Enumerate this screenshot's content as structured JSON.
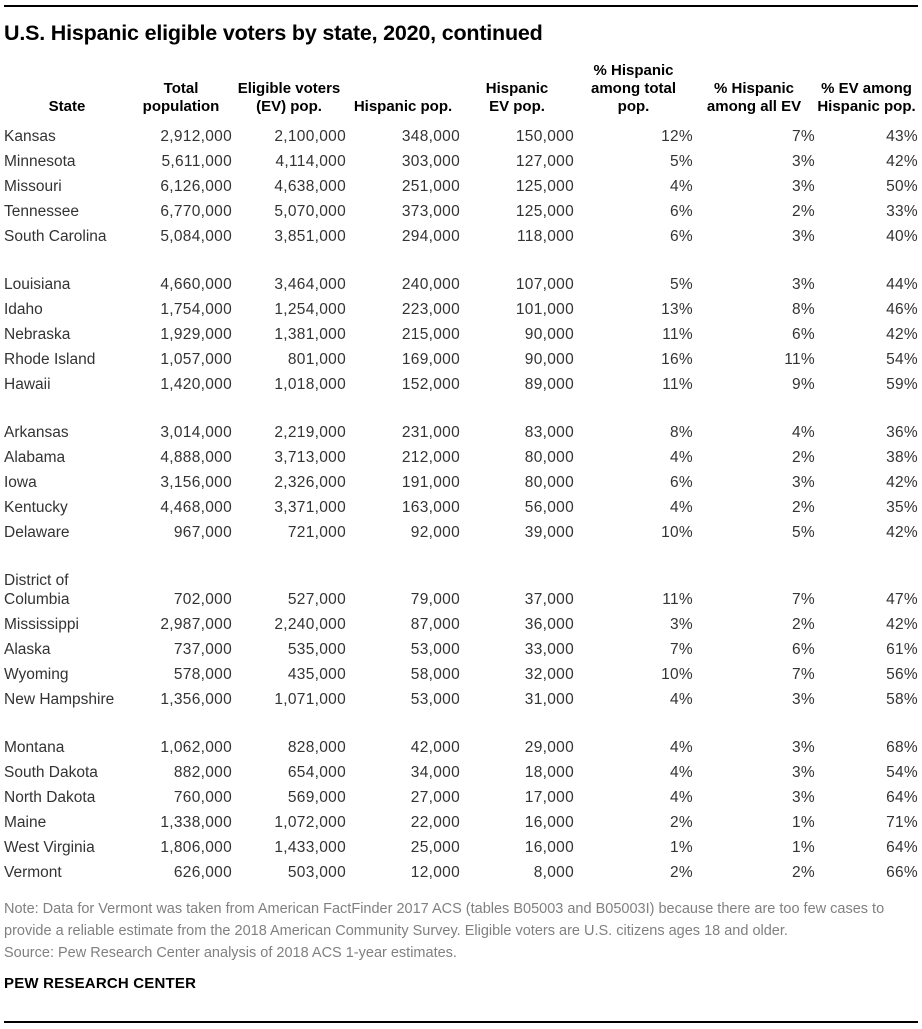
{
  "title": "U.S. Hispanic eligible voters by state, 2020, continued",
  "chart_data": {
    "type": "table",
    "title": "U.S. Hispanic eligible voters by state, 2020, continued",
    "columns": [
      "State",
      "Total population",
      "Eligible voters (EV) pop.",
      "Hispanic pop.",
      "Hispanic EV pop.",
      "% Hispanic among total pop.",
      "% Hispanic among all EV",
      "% EV among Hispanic pop."
    ],
    "header_lines": [
      "State",
      "Total\npopulation",
      "Eligible voters\n(EV) pop.",
      "Hispanic pop.",
      "Hispanic\nEV pop.",
      "% Hispanic\namong total\npop.",
      "% Hispanic\namong all EV",
      "% EV among\nHispanic pop."
    ],
    "groups": [
      [
        [
          "Kansas",
          "2,912,000",
          "2,100,000",
          "348,000",
          "150,000",
          "12%",
          "7%",
          "43%"
        ],
        [
          "Minnesota",
          "5,611,000",
          "4,114,000",
          "303,000",
          "127,000",
          "5%",
          "3%",
          "42%"
        ],
        [
          "Missouri",
          "6,126,000",
          "4,638,000",
          "251,000",
          "125,000",
          "4%",
          "3%",
          "50%"
        ],
        [
          "Tennessee",
          "6,770,000",
          "5,070,000",
          "373,000",
          "125,000",
          "6%",
          "2%",
          "33%"
        ],
        [
          "South Carolina",
          "5,084,000",
          "3,851,000",
          "294,000",
          "118,000",
          "6%",
          "3%",
          "40%"
        ]
      ],
      [
        [
          "Louisiana",
          "4,660,000",
          "3,464,000",
          "240,000",
          "107,000",
          "5%",
          "3%",
          "44%"
        ],
        [
          "Idaho",
          "1,754,000",
          "1,254,000",
          "223,000",
          "101,000",
          "13%",
          "8%",
          "46%"
        ],
        [
          "Nebraska",
          "1,929,000",
          "1,381,000",
          "215,000",
          "90,000",
          "11%",
          "6%",
          "42%"
        ],
        [
          "Rhode Island",
          "1,057,000",
          "801,000",
          "169,000",
          "90,000",
          "16%",
          "11%",
          "54%"
        ],
        [
          "Hawaii",
          "1,420,000",
          "1,018,000",
          "152,000",
          "89,000",
          "11%",
          "9%",
          "59%"
        ]
      ],
      [
        [
          "Arkansas",
          "3,014,000",
          "2,219,000",
          "231,000",
          "83,000",
          "8%",
          "4%",
          "36%"
        ],
        [
          "Alabama",
          "4,888,000",
          "3,713,000",
          "212,000",
          "80,000",
          "4%",
          "2%",
          "38%"
        ],
        [
          "Iowa",
          "3,156,000",
          "2,326,000",
          "191,000",
          "80,000",
          "6%",
          "3%",
          "42%"
        ],
        [
          "Kentucky",
          "4,468,000",
          "3,371,000",
          "163,000",
          "56,000",
          "4%",
          "2%",
          "35%"
        ],
        [
          "Delaware",
          "967,000",
          "721,000",
          "92,000",
          "39,000",
          "10%",
          "5%",
          "42%"
        ]
      ],
      [
        [
          "District of Columbia",
          "702,000",
          "527,000",
          "79,000",
          "37,000",
          "11%",
          "7%",
          "47%"
        ],
        [
          "Mississippi",
          "2,987,000",
          "2,240,000",
          "87,000",
          "36,000",
          "3%",
          "2%",
          "42%"
        ],
        [
          "Alaska",
          "737,000",
          "535,000",
          "53,000",
          "33,000",
          "7%",
          "6%",
          "61%"
        ],
        [
          "Wyoming",
          "578,000",
          "435,000",
          "58,000",
          "32,000",
          "10%",
          "7%",
          "56%"
        ],
        [
          "New Hampshire",
          "1,356,000",
          "1,071,000",
          "53,000",
          "31,000",
          "4%",
          "3%",
          "58%"
        ]
      ],
      [
        [
          "Montana",
          "1,062,000",
          "828,000",
          "42,000",
          "29,000",
          "4%",
          "3%",
          "68%"
        ],
        [
          "South Dakota",
          "882,000",
          "654,000",
          "34,000",
          "18,000",
          "4%",
          "3%",
          "54%"
        ],
        [
          "North Dakota",
          "760,000",
          "569,000",
          "27,000",
          "17,000",
          "4%",
          "3%",
          "64%"
        ],
        [
          "Maine",
          "1,338,000",
          "1,072,000",
          "22,000",
          "16,000",
          "2%",
          "1%",
          "71%"
        ],
        [
          "West Virginia",
          "1,806,000",
          "1,433,000",
          "25,000",
          "16,000",
          "1%",
          "1%",
          "64%"
        ],
        [
          "Vermont",
          "626,000",
          "503,000",
          "12,000",
          "8,000",
          "2%",
          "2%",
          "66%"
        ]
      ]
    ],
    "note": "Note: Data for Vermont was taken from American FactFinder 2017 ACS (tables B05003 and B05003I) because there are too few cases to provide a reliable estimate from the 2018 American Community Survey. Eligible voters are U.S. citizens ages 18 and older.",
    "source": "Source: Pew Research Center analysis of 2018 ACS 1-year estimates.",
    "branding": "PEW RESEARCH CENTER"
  },
  "colors": {
    "title_text": "#000000",
    "body_text": "#333333",
    "note_text": "#808080",
    "rule": "#000000"
  }
}
